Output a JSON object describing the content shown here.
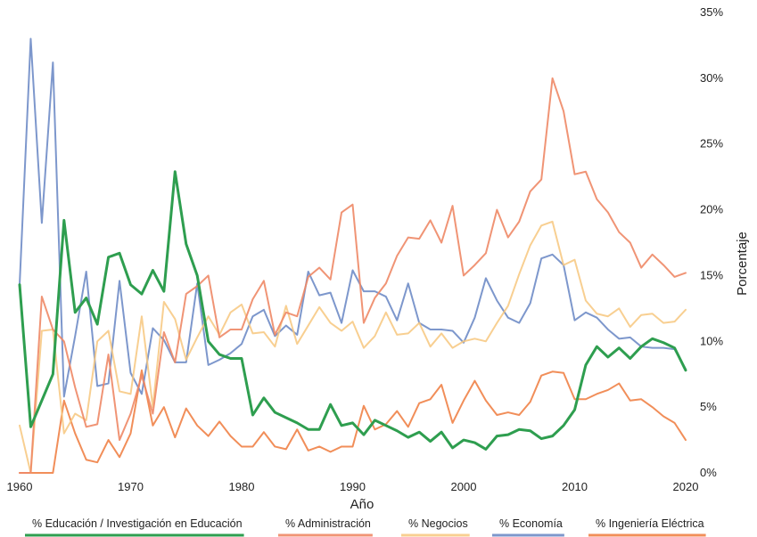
{
  "chart_data": {
    "type": "line",
    "xlabel": "Año",
    "ylabel": "Porcentaje",
    "xlim": [
      1960,
      2020
    ],
    "ylim": [
      0,
      35
    ],
    "x_ticks": [
      "1960",
      "1970",
      "1980",
      "1990",
      "2000",
      "2010",
      "2020"
    ],
    "y_ticks": [
      "0%",
      "5%",
      "10%",
      "15%",
      "20%",
      "25%",
      "30%",
      "35%"
    ],
    "y_axis_side": "right",
    "grid": false,
    "legend_placement": "bottom",
    "x": [
      1960,
      1961,
      1962,
      1963,
      1964,
      1965,
      1966,
      1967,
      1968,
      1969,
      1970,
      1971,
      1972,
      1973,
      1974,
      1975,
      1976,
      1977,
      1978,
      1979,
      1980,
      1981,
      1982,
      1983,
      1984,
      1985,
      1986,
      1987,
      1988,
      1989,
      1990,
      1991,
      1992,
      1993,
      1994,
      1995,
      1996,
      1997,
      1998,
      1999,
      2000,
      2001,
      2002,
      2003,
      2004,
      2005,
      2006,
      2007,
      2008,
      2009,
      2010,
      2011,
      2012,
      2013,
      2014,
      2015,
      2016,
      2017,
      2018,
      2019,
      2020
    ],
    "series": [
      {
        "name": "% Educación / Investigación en Educación",
        "color": "#2e9e4f",
        "opacity": 1.0,
        "width": 3,
        "values": [
          14.3,
          3.5,
          5.5,
          7.5,
          19.2,
          12.2,
          13.3,
          11.3,
          16.4,
          16.7,
          14.3,
          13.6,
          15.4,
          13.8,
          22.9,
          17.4,
          15.0,
          10.0,
          9.0,
          8.7,
          8.7,
          4.4,
          5.7,
          4.6,
          4.2,
          3.8,
          3.3,
          3.3,
          5.2,
          3.6,
          3.8,
          2.9,
          4.0,
          3.6,
          3.2,
          2.7,
          3.1,
          2.4,
          3.1,
          1.9,
          2.5,
          2.3,
          1.8,
          2.8,
          2.9,
          3.3,
          3.2,
          2.6,
          2.8,
          3.6,
          4.8,
          8.2,
          9.6,
          8.8,
          9.5,
          8.7,
          9.6,
          10.2,
          9.9,
          9.5,
          7.8
        ]
      },
      {
        "name": "% Administración",
        "color": "#ee8866",
        "opacity": 0.9,
        "width": 2,
        "values": [
          0.0,
          0.0,
          13.4,
          10.9,
          10.0,
          6.5,
          3.5,
          3.7,
          9.0,
          2.5,
          4.5,
          7.4,
          4.5,
          10.7,
          8.4,
          13.6,
          14.2,
          15.0,
          10.3,
          10.9,
          10.9,
          13.2,
          14.6,
          10.5,
          12.2,
          11.9,
          14.9,
          15.6,
          14.7,
          19.8,
          20.4,
          11.4,
          13.3,
          14.4,
          16.5,
          17.9,
          17.8,
          19.2,
          17.5,
          20.3,
          15.0,
          15.8,
          16.7,
          20.0,
          17.9,
          19.1,
          21.4,
          22.3,
          30.0,
          27.5,
          22.7,
          22.9,
          20.8,
          19.8,
          18.3,
          17.5,
          15.6,
          16.6,
          15.8,
          14.9,
          15.2
        ]
      },
      {
        "name": "% Negocios",
        "color": "#f7c77e",
        "opacity": 0.85,
        "width": 2,
        "values": [
          3.6,
          0.0,
          10.8,
          10.9,
          3.0,
          4.5,
          4.0,
          10.0,
          10.8,
          6.2,
          6.0,
          11.9,
          5.0,
          13.0,
          11.7,
          8.6,
          10.3,
          11.9,
          10.5,
          12.2,
          12.8,
          10.6,
          10.7,
          9.6,
          12.7,
          9.8,
          11.2,
          12.6,
          11.4,
          10.8,
          11.5,
          9.5,
          10.4,
          12.2,
          10.5,
          10.6,
          11.4,
          9.6,
          10.6,
          9.5,
          10.0,
          10.2,
          10.0,
          11.4,
          12.7,
          15.1,
          17.3,
          18.8,
          19.1,
          15.8,
          16.2,
          13.1,
          12.1,
          11.9,
          12.5,
          11.1,
          12.0,
          12.1,
          11.4,
          11.5,
          12.4
        ]
      },
      {
        "name": "% Economía",
        "color": "#6f8cc6",
        "opacity": 0.9,
        "width": 2,
        "values": [
          14.3,
          33.0,
          19.0,
          31.2,
          5.8,
          10.4,
          15.3,
          6.6,
          6.8,
          14.6,
          7.6,
          6.0,
          11.0,
          10.1,
          8.4,
          8.4,
          14.4,
          8.2,
          8.6,
          9.1,
          9.8,
          11.9,
          12.4,
          10.4,
          11.2,
          10.5,
          15.3,
          13.5,
          13.7,
          11.4,
          15.4,
          13.8,
          13.8,
          13.4,
          11.6,
          14.4,
          11.4,
          10.9,
          10.9,
          10.8,
          9.9,
          11.8,
          14.8,
          13.1,
          11.8,
          11.4,
          12.9,
          16.3,
          16.6,
          15.8,
          11.6,
          12.2,
          11.8,
          10.9,
          10.2,
          10.3,
          9.6,
          9.5,
          9.5,
          9.4,
          7.9
        ]
      },
      {
        "name": "% Ingeniería Eléctrica",
        "color": "#ee7a3c",
        "opacity": 0.85,
        "width": 2,
        "values": [
          0.0,
          0.0,
          0.0,
          0.0,
          5.5,
          3.0,
          1.0,
          0.8,
          2.5,
          1.2,
          3.0,
          7.8,
          3.6,
          5.0,
          2.7,
          4.9,
          3.6,
          2.8,
          3.9,
          2.8,
          2.0,
          2.0,
          3.1,
          2.0,
          1.8,
          3.3,
          1.7,
          2.0,
          1.6,
          2.0,
          2.0,
          5.1,
          3.3,
          3.7,
          4.7,
          3.5,
          5.3,
          5.6,
          6.7,
          3.8,
          5.5,
          7.0,
          5.5,
          4.4,
          4.6,
          4.4,
          5.4,
          7.4,
          7.7,
          7.6,
          5.6,
          5.6,
          6.0,
          6.3,
          6.8,
          5.5,
          5.6,
          5.0,
          4.3,
          3.8,
          2.5
        ]
      }
    ]
  }
}
